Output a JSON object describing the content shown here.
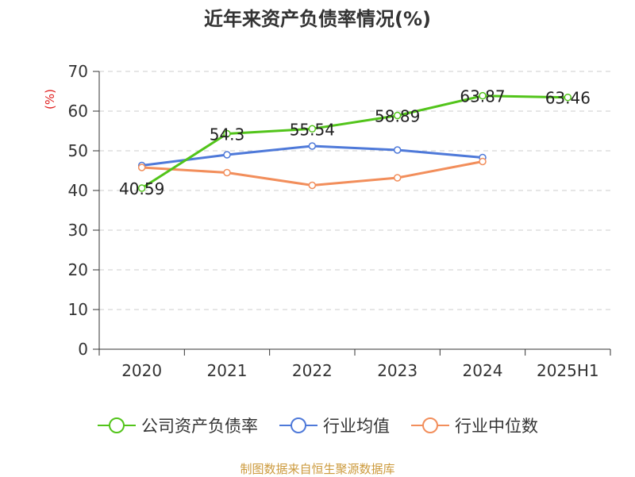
{
  "colors": {
    "company": "#52c41a",
    "industry_avg": "#4e79d9",
    "industry_median": "#f28e5b",
    "ylabel": "#e02020",
    "source": "#cc9a3d"
  },
  "chart_data": {
    "type": "line",
    "title": "近年来资产负债率情况(%)",
    "ylabel": "(%)",
    "xlabel": "",
    "categories": [
      "2020",
      "2021",
      "2022",
      "2023",
      "2024",
      "2025H1"
    ],
    "ylim": [
      0,
      70
    ],
    "yticks": [
      0,
      10,
      20,
      30,
      40,
      50,
      60,
      70
    ],
    "grid": true,
    "legend_position": "bottom",
    "series": [
      {
        "name": "公司资产负债率",
        "color_key": "company",
        "values": [
          40.59,
          54.3,
          55.54,
          58.89,
          63.87,
          63.46
        ],
        "labels": [
          "40.59",
          "54.3",
          "55.54",
          "58.89",
          "63.87",
          "63.46"
        ],
        "show_labels": true
      },
      {
        "name": "行业均值",
        "color_key": "industry_avg",
        "values": [
          46.3,
          49.0,
          51.2,
          50.2,
          48.3,
          null
        ],
        "show_labels": false
      },
      {
        "name": "行业中位数",
        "color_key": "industry_median",
        "values": [
          45.8,
          44.5,
          41.3,
          43.2,
          47.3,
          null
        ],
        "show_labels": false
      }
    ]
  },
  "source_note": "制图数据来自恒生聚源数据库"
}
